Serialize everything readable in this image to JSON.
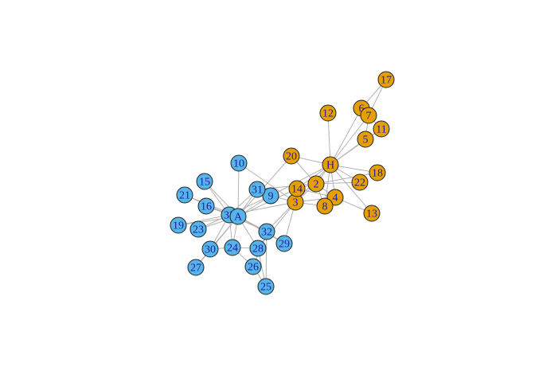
{
  "colors": {
    "group1": "#E69F00",
    "group2": "#56B4E9",
    "edge": "#b3b3b3",
    "label": "#1a1aa0"
  },
  "nodes": [
    {
      "id": "H",
      "group": "group1"
    },
    {
      "id": "2",
      "group": "group1"
    },
    {
      "id": "3",
      "group": "group1"
    },
    {
      "id": "4",
      "group": "group1"
    },
    {
      "id": "5",
      "group": "group1"
    },
    {
      "id": "6",
      "group": "group1"
    },
    {
      "id": "7",
      "group": "group1"
    },
    {
      "id": "8",
      "group": "group1"
    },
    {
      "id": "9",
      "group": "group2"
    },
    {
      "id": "10",
      "group": "group2"
    },
    {
      "id": "11",
      "group": "group1"
    },
    {
      "id": "12",
      "group": "group1"
    },
    {
      "id": "13",
      "group": "group1"
    },
    {
      "id": "14",
      "group": "group1"
    },
    {
      "id": "15",
      "group": "group2"
    },
    {
      "id": "16",
      "group": "group2"
    },
    {
      "id": "17",
      "group": "group1"
    },
    {
      "id": "18",
      "group": "group1"
    },
    {
      "id": "19",
      "group": "group2"
    },
    {
      "id": "20",
      "group": "group1"
    },
    {
      "id": "21",
      "group": "group2"
    },
    {
      "id": "22",
      "group": "group1"
    },
    {
      "id": "23",
      "group": "group2"
    },
    {
      "id": "24",
      "group": "group2"
    },
    {
      "id": "25",
      "group": "group2"
    },
    {
      "id": "26",
      "group": "group2"
    },
    {
      "id": "27",
      "group": "group2"
    },
    {
      "id": "28",
      "group": "group2"
    },
    {
      "id": "29",
      "group": "group2"
    },
    {
      "id": "30",
      "group": "group2"
    },
    {
      "id": "31",
      "group": "group2"
    },
    {
      "id": "32",
      "group": "group2"
    },
    {
      "id": "33",
      "group": "group2"
    },
    {
      "id": "A",
      "group": "group2"
    }
  ],
  "edges": [
    [
      "H",
      "2"
    ],
    [
      "H",
      "3"
    ],
    [
      "H",
      "4"
    ],
    [
      "H",
      "5"
    ],
    [
      "H",
      "6"
    ],
    [
      "H",
      "7"
    ],
    [
      "H",
      "8"
    ],
    [
      "H",
      "9"
    ],
    [
      "H",
      "11"
    ],
    [
      "H",
      "12"
    ],
    [
      "H",
      "13"
    ],
    [
      "H",
      "14"
    ],
    [
      "H",
      "18"
    ],
    [
      "H",
      "20"
    ],
    [
      "H",
      "22"
    ],
    [
      "H",
      "32"
    ],
    [
      "2",
      "3"
    ],
    [
      "2",
      "4"
    ],
    [
      "2",
      "8"
    ],
    [
      "2",
      "14"
    ],
    [
      "2",
      "18"
    ],
    [
      "2",
      "20"
    ],
    [
      "2",
      "22"
    ],
    [
      "2",
      "31"
    ],
    [
      "3",
      "4"
    ],
    [
      "3",
      "8"
    ],
    [
      "3",
      "9"
    ],
    [
      "3",
      "10"
    ],
    [
      "3",
      "14"
    ],
    [
      "3",
      "28"
    ],
    [
      "3",
      "29"
    ],
    [
      "3",
      "33"
    ],
    [
      "4",
      "8"
    ],
    [
      "4",
      "13"
    ],
    [
      "4",
      "14"
    ],
    [
      "5",
      "7"
    ],
    [
      "5",
      "11"
    ],
    [
      "6",
      "7"
    ],
    [
      "6",
      "11"
    ],
    [
      "6",
      "17"
    ],
    [
      "7",
      "17"
    ],
    [
      "9",
      "31"
    ],
    [
      "9",
      "33"
    ],
    [
      "9",
      "A"
    ],
    [
      "10",
      "A"
    ],
    [
      "14",
      "A"
    ],
    [
      "15",
      "33"
    ],
    [
      "15",
      "A"
    ],
    [
      "16",
      "33"
    ],
    [
      "16",
      "A"
    ],
    [
      "19",
      "33"
    ],
    [
      "19",
      "A"
    ],
    [
      "20",
      "A"
    ],
    [
      "21",
      "33"
    ],
    [
      "21",
      "A"
    ],
    [
      "23",
      "33"
    ],
    [
      "23",
      "A"
    ],
    [
      "24",
      "26"
    ],
    [
      "24",
      "28"
    ],
    [
      "24",
      "30"
    ],
    [
      "24",
      "33"
    ],
    [
      "24",
      "A"
    ],
    [
      "25",
      "26"
    ],
    [
      "25",
      "28"
    ],
    [
      "25",
      "32"
    ],
    [
      "26",
      "32"
    ],
    [
      "27",
      "30"
    ],
    [
      "27",
      "A"
    ],
    [
      "28",
      "A"
    ],
    [
      "29",
      "32"
    ],
    [
      "29",
      "A"
    ],
    [
      "30",
      "33"
    ],
    [
      "30",
      "A"
    ],
    [
      "31",
      "33"
    ],
    [
      "31",
      "A"
    ],
    [
      "32",
      "33"
    ],
    [
      "32",
      "A"
    ],
    [
      "33",
      "A"
    ]
  ]
}
